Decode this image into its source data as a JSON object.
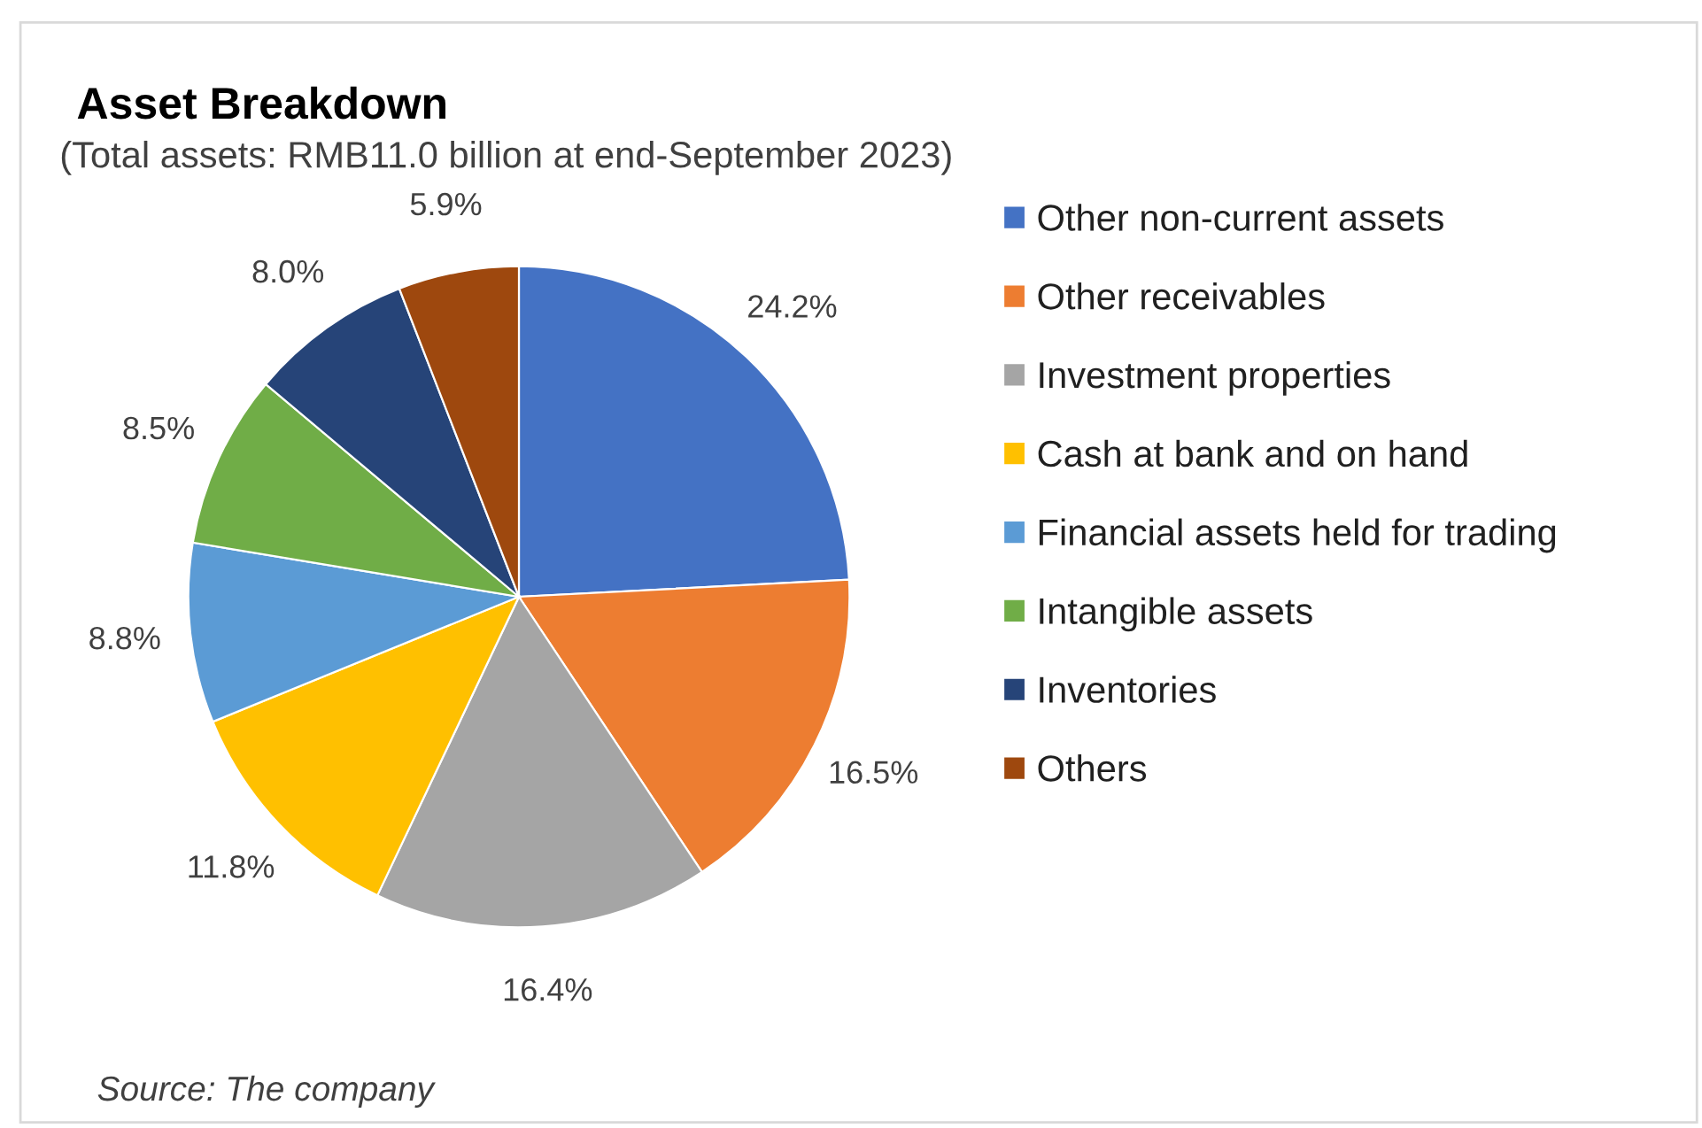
{
  "chart_data": {
    "type": "pie",
    "title": "Asset Breakdown",
    "subtitle": "(Total assets: RMB11.0 billion at end-September 2023)",
    "categories": [
      "Other non-current assets",
      "Other receivables",
      "Investment properties",
      "Cash at bank and on hand",
      "Financial assets held for trading",
      "Intangible assets",
      "Inventories",
      "Others"
    ],
    "values": [
      24.2,
      16.5,
      16.4,
      11.8,
      8.8,
      8.5,
      8.0,
      5.9
    ],
    "colors": [
      "#4472c4",
      "#ed7d31",
      "#a5a5a5",
      "#ffc000",
      "#5b9bd5",
      "#70ad47",
      "#264478",
      "#9e480e"
    ],
    "value_labels": [
      "24.2%",
      "16.5%",
      "16.4%",
      "11.8%",
      "8.8%",
      "8.5%",
      "8.0%",
      "5.9%"
    ],
    "legend": "right",
    "annotations": [
      "Source: The company"
    ]
  }
}
